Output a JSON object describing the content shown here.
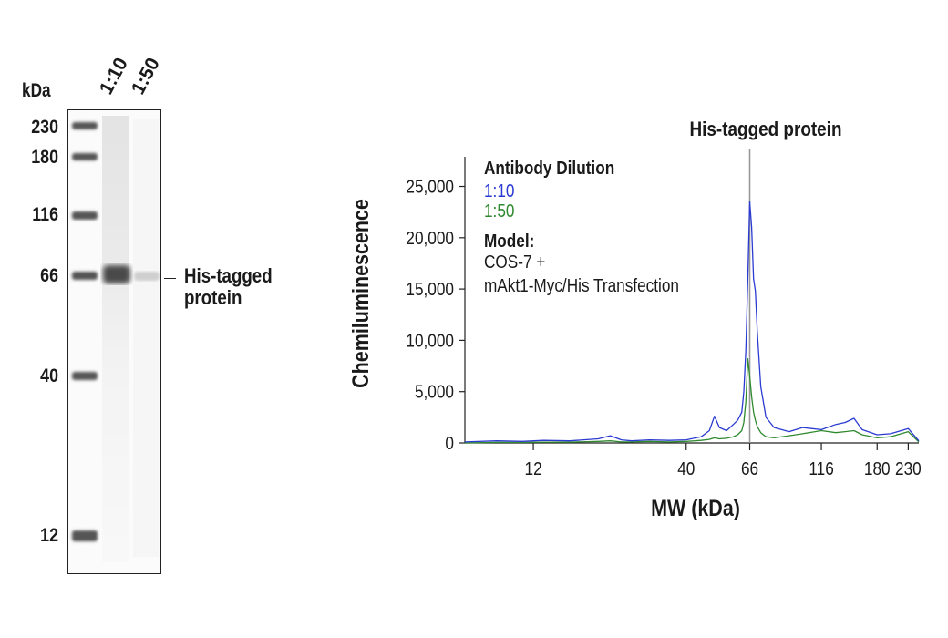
{
  "blot": {
    "units_label": "kDa",
    "lanes": [
      "1:10",
      "1:50"
    ],
    "markers": [
      "230",
      "180",
      "116",
      "66",
      "40",
      "12"
    ],
    "band_label_line1": "His-tagged",
    "band_label_line2": "protein"
  },
  "legend": {
    "title": "Antibody Dilution",
    "series_1": "1:10",
    "series_2": "1:50",
    "model_title": "Model:",
    "model_line1": "COS-7 +",
    "model_line2": "mAkt1-Myc/His Transfection"
  },
  "colors": {
    "series_1": "#2b3bd1",
    "series_2": "#2f8a2f",
    "axis": "#222222",
    "marker_line": "#999999"
  },
  "chart_data": {
    "type": "line",
    "title": "His-tagged protein",
    "xlabel": "MW (kDa)",
    "ylabel": "Chemiluminescence",
    "x_scale": "log",
    "xlim": [
      7,
      250
    ],
    "ylim": [
      0,
      27000
    ],
    "x_ticks": [
      12,
      40,
      66,
      116,
      180,
      230
    ],
    "x_tick_labels": [
      "12",
      "40",
      "66",
      "116",
      "180",
      "230"
    ],
    "y_ticks": [
      0,
      5000,
      10000,
      15000,
      20000,
      25000
    ],
    "y_tick_labels": [
      "0",
      "5,000",
      "10,000",
      "15,000",
      "20,000",
      "25,000"
    ],
    "marker_line_x": 66,
    "series": [
      {
        "name": "1:10",
        "x": [
          7,
          9,
          11,
          13,
          16,
          20,
          22,
          24,
          26,
          30,
          35,
          40,
          45,
          48,
          50,
          52,
          55,
          58,
          60,
          62,
          63,
          64,
          65,
          66,
          67,
          68,
          69,
          70,
          72,
          75,
          80,
          90,
          100,
          116,
          130,
          140,
          150,
          160,
          180,
          200,
          230,
          250
        ],
        "y": [
          100,
          200,
          150,
          250,
          200,
          400,
          700,
          300,
          200,
          300,
          250,
          300,
          600,
          1200,
          2600,
          1500,
          1200,
          1800,
          2200,
          3000,
          5000,
          9000,
          16000,
          23500,
          21000,
          16000,
          14800,
          11000,
          5500,
          2500,
          1500,
          1100,
          1500,
          1300,
          1800,
          2000,
          2400,
          1300,
          800,
          900,
          1400,
          200
        ]
      },
      {
        "name": "1:50",
        "x": [
          7,
          9,
          11,
          13,
          16,
          20,
          22,
          24,
          26,
          30,
          35,
          40,
          45,
          48,
          50,
          52,
          55,
          58,
          60,
          62,
          63,
          64,
          65,
          66,
          67,
          68,
          69,
          70,
          72,
          75,
          80,
          90,
          100,
          116,
          130,
          140,
          150,
          160,
          180,
          200,
          230,
          250
        ],
        "y": [
          0,
          50,
          50,
          80,
          80,
          150,
          200,
          100,
          100,
          150,
          100,
          150,
          250,
          350,
          500,
          400,
          450,
          600,
          800,
          1200,
          2000,
          4000,
          8200,
          6500,
          4500,
          3000,
          2200,
          1600,
          1000,
          600,
          500,
          700,
          900,
          1200,
          1000,
          1100,
          1200,
          800,
          500,
          600,
          1100,
          100
        ]
      }
    ]
  }
}
